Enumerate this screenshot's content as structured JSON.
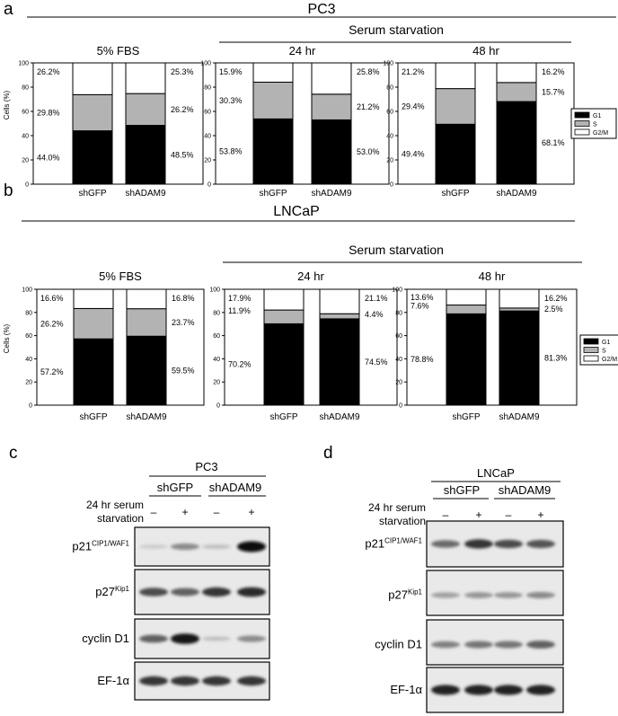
{
  "panel_a": {
    "label": "a",
    "title": "PC3",
    "starvation_label": "Serum starvation",
    "ylabel": "Cells (%)",
    "legend": [
      "G1",
      "S",
      "G2/M"
    ]
  },
  "panel_b": {
    "label": "b",
    "title": "LNCaP",
    "starvation_label": "Serum starvation",
    "ylabel": "Cells (%)",
    "legend": [
      "G1",
      "S",
      "G2/M"
    ]
  },
  "chart_data": [
    {
      "type": "bar",
      "stacked": true,
      "panel": "a",
      "title": "5% FBS",
      "categories": [
        "shGFP",
        "shADAM9"
      ],
      "series": [
        {
          "name": "G1",
          "values": [
            44.0,
            48.5
          ],
          "labels": [
            "44.0%",
            "48.5%"
          ]
        },
        {
          "name": "S",
          "values": [
            29.8,
            26.2
          ],
          "labels": [
            "29.8%",
            "26.2%"
          ]
        },
        {
          "name": "G2/M",
          "values": [
            26.2,
            25.3
          ],
          "labels": [
            "26.2%",
            "25.3%"
          ]
        }
      ],
      "ylabel": "Cells (%)",
      "ylim": [
        0,
        100
      ],
      "yticks": [
        0,
        20,
        40,
        60,
        80,
        100
      ]
    },
    {
      "type": "bar",
      "stacked": true,
      "panel": "a",
      "title": "24 hr",
      "categories": [
        "shGFP",
        "shADAM9"
      ],
      "series": [
        {
          "name": "G1",
          "values": [
            53.8,
            53.0
          ],
          "labels": [
            "53.8%",
            "53.0%"
          ]
        },
        {
          "name": "S",
          "values": [
            30.3,
            21.2
          ],
          "labels": [
            "30.3%",
            "21.2%"
          ]
        },
        {
          "name": "G2/M",
          "values": [
            15.9,
            25.8
          ],
          "labels": [
            "15.9%",
            "25.8%"
          ]
        }
      ],
      "ylim": [
        0,
        100
      ],
      "yticks": [
        0,
        20,
        40,
        60,
        80,
        100
      ]
    },
    {
      "type": "bar",
      "stacked": true,
      "panel": "a",
      "title": "48 hr",
      "categories": [
        "shGFP",
        "shADAM9"
      ],
      "series": [
        {
          "name": "G1",
          "values": [
            49.4,
            68.1
          ],
          "labels": [
            "49.4%",
            "68.1%"
          ]
        },
        {
          "name": "S",
          "values": [
            29.4,
            15.7
          ],
          "labels": [
            "29.4%",
            "15.7%"
          ]
        },
        {
          "name": "G2/M",
          "values": [
            21.2,
            16.2
          ],
          "labels": [
            "21.2%",
            "16.2%"
          ]
        }
      ],
      "ylim": [
        0,
        100
      ],
      "yticks": [
        0,
        20,
        40,
        60,
        80,
        100
      ],
      "legend": [
        "G1",
        "S",
        "G2/M"
      ]
    },
    {
      "type": "bar",
      "stacked": true,
      "panel": "b",
      "title": "5% FBS",
      "categories": [
        "shGFP",
        "shADAM9"
      ],
      "series": [
        {
          "name": "G1",
          "values": [
            57.2,
            59.5
          ],
          "labels": [
            "57.2%",
            "59.5%"
          ]
        },
        {
          "name": "S",
          "values": [
            26.2,
            23.7
          ],
          "labels": [
            "26.2%",
            "23.7%"
          ]
        },
        {
          "name": "G2/M",
          "values": [
            16.6,
            16.8
          ],
          "labels": [
            "16.6%",
            "16.8%"
          ]
        }
      ],
      "ylabel": "Cells (%)",
      "ylim": [
        0,
        100
      ],
      "yticks": [
        0,
        20,
        40,
        60,
        80,
        100
      ]
    },
    {
      "type": "bar",
      "stacked": true,
      "panel": "b",
      "title": "24 hr",
      "categories": [
        "shGFP",
        "shADAM9"
      ],
      "series": [
        {
          "name": "G1",
          "values": [
            70.2,
            74.5
          ],
          "labels": [
            "70.2%",
            "74.5%"
          ]
        },
        {
          "name": "S",
          "values": [
            11.9,
            4.4
          ],
          "labels": [
            "11.9%",
            "4.4%"
          ]
        },
        {
          "name": "G2/M",
          "values": [
            17.9,
            21.1
          ],
          "labels": [
            "17.9%",
            "21.1%"
          ]
        }
      ],
      "ylim": [
        0,
        100
      ],
      "yticks": [
        0,
        20,
        40,
        60,
        80,
        100
      ]
    },
    {
      "type": "bar",
      "stacked": true,
      "panel": "b",
      "title": "48 hr",
      "categories": [
        "shGFP",
        "shADAM9"
      ],
      "series": [
        {
          "name": "G1",
          "values": [
            78.8,
            81.3
          ],
          "labels": [
            "78.8%",
            "81.3%"
          ]
        },
        {
          "name": "S",
          "values": [
            7.6,
            2.5
          ],
          "labels": [
            "7.6%",
            "2.5%"
          ]
        },
        {
          "name": "G2/M",
          "values": [
            13.6,
            16.2
          ],
          "labels": [
            "13.6%",
            "16.2%"
          ]
        }
      ],
      "ylim": [
        0,
        100
      ],
      "yticks": [
        0,
        20,
        40,
        60,
        80,
        100
      ],
      "legend": [
        "G1",
        "S",
        "G2/M"
      ]
    }
  ],
  "colors": {
    "G1": "#000000",
    "S": "#b3b3b3",
    "G2/M": "#ffffff"
  },
  "panel_c": {
    "label": "c",
    "cell_line": "PC3",
    "groups": [
      "shGFP",
      "shADAM9"
    ],
    "treatment_label": [
      "24 hr serum",
      "starvation"
    ],
    "lanes": [
      "–",
      "+",
      "–",
      "+"
    ],
    "blots": [
      {
        "name": "p21",
        "sup": "CIP1/WAF1",
        "intensity": [
          0.1,
          0.4,
          0.15,
          1.0
        ]
      },
      {
        "name": "p27",
        "sup": "Kip1",
        "intensity": [
          0.7,
          0.6,
          0.8,
          0.85
        ]
      },
      {
        "name": "cyclin D1",
        "sup": "",
        "intensity": [
          0.6,
          0.95,
          0.15,
          0.4
        ]
      },
      {
        "name": "EF-1α",
        "sup": "",
        "intensity": [
          0.8,
          0.8,
          0.8,
          0.8
        ]
      }
    ]
  },
  "panel_d": {
    "label": "d",
    "cell_line": "LNCaP",
    "groups": [
      "shGFP",
      "shADAM9"
    ],
    "treatment_label": [
      "24 hr serum",
      "starvation"
    ],
    "lanes": [
      "–",
      "+",
      "–",
      "+"
    ],
    "blots": [
      {
        "name": "p21",
        "sup": "CIP1/WAF1",
        "intensity": [
          0.55,
          0.8,
          0.7,
          0.65
        ]
      },
      {
        "name": "p27",
        "sup": "Kip1",
        "intensity": [
          0.3,
          0.35,
          0.35,
          0.4
        ]
      },
      {
        "name": "cyclin D1",
        "sup": "",
        "intensity": [
          0.45,
          0.5,
          0.5,
          0.6
        ]
      },
      {
        "name": "EF-1α",
        "sup": "",
        "intensity": [
          0.9,
          0.9,
          0.9,
          0.9
        ]
      }
    ]
  }
}
